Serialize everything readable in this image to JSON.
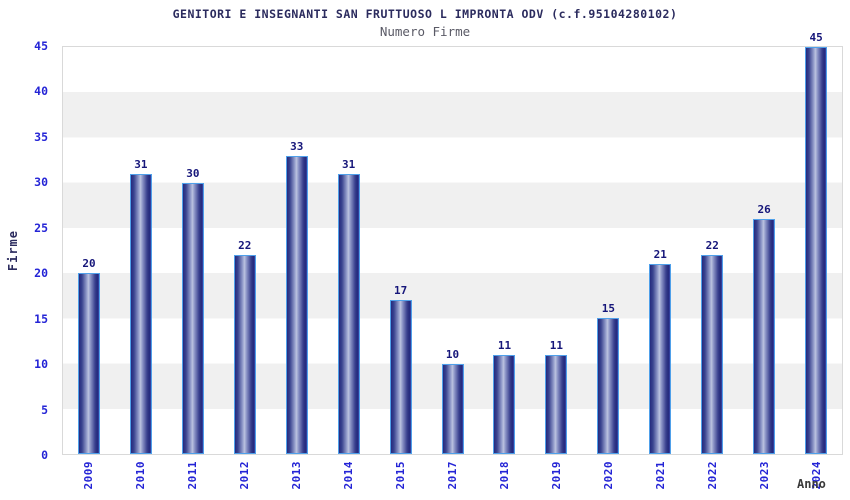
{
  "chart_data": {
    "type": "bar",
    "title": "GENITORI E INSEGNANTI SAN FRUTTUOSO L IMPRONTA ODV (c.f.95104280102)",
    "subtitle": "Numero Firme",
    "xlabel": "Anno",
    "ylabel": "Firme",
    "categories": [
      "2009",
      "2010",
      "2011",
      "2012",
      "2013",
      "2014",
      "2015",
      "2017",
      "2018",
      "2019",
      "2020",
      "2021",
      "2022",
      "2023",
      "2024"
    ],
    "values": [
      20,
      31,
      30,
      22,
      33,
      31,
      17,
      10,
      11,
      11,
      15,
      21,
      22,
      26,
      45
    ],
    "ylim": [
      0,
      45
    ],
    "ytick_step": 5,
    "grid": "horizontal-bands",
    "legend": "none",
    "colors": {
      "bar_dark": "#252a7e",
      "bar_light": "#bcc3e0",
      "bar_border": "#4fa0ea",
      "tick_label_blue": "#2424d6",
      "value_label": "#16167a",
      "band_gray": "#f0f0f0",
      "band_white": "#ffffff",
      "plot_border": "#d9d9d9",
      "title_color": "#2b2b5e",
      "subtitle_color": "#5a5a66",
      "xlabel_color": "#3a3a3a"
    }
  }
}
